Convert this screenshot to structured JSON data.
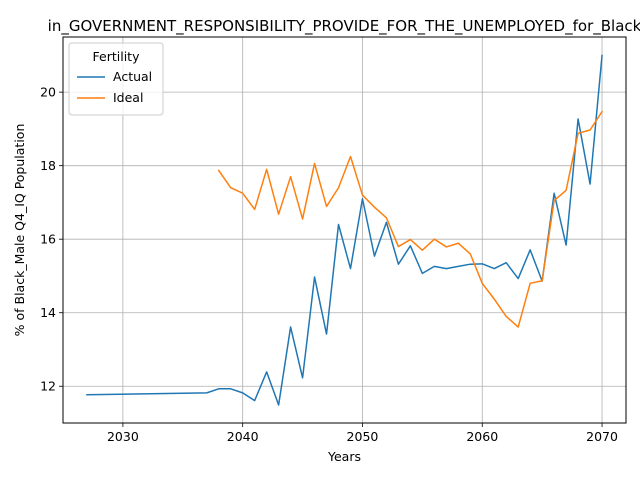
{
  "chart_data": {
    "type": "line",
    "title": "in_GOVERNMENT_RESPONSIBILITY_PROVIDE_FOR_THE_UNEMPLOYED_for_Black",
    "xlabel": "Years",
    "ylabel": "% of Black_Male Q4_IQ Population",
    "xlim": [
      2025,
      2072
    ],
    "ylim": [
      11.0,
      21.5
    ],
    "xticks": [
      2030,
      2040,
      2050,
      2060,
      2070
    ],
    "yticks": [
      12,
      14,
      16,
      18,
      20
    ],
    "grid": true,
    "legend": {
      "title": "Fertility",
      "placement": "upper-left"
    },
    "series": [
      {
        "name": "Actual",
        "color": "#1f77b4",
        "x": [
          2027,
          2037,
          2038,
          2039,
          2040,
          2041,
          2042,
          2043,
          2044,
          2045,
          2046,
          2047,
          2048,
          2049,
          2050,
          2051,
          2052,
          2053,
          2054,
          2055,
          2056,
          2057,
          2058,
          2059,
          2060,
          2061,
          2062,
          2063,
          2064,
          2065,
          2066,
          2067,
          2068,
          2069,
          2070
        ],
        "y": [
          11.77,
          11.82,
          11.93,
          11.93,
          11.82,
          11.61,
          12.39,
          11.49,
          13.61,
          12.23,
          14.97,
          13.42,
          16.4,
          15.2,
          17.1,
          15.54,
          16.46,
          15.32,
          15.82,
          15.07,
          15.26,
          15.2,
          15.26,
          15.32,
          15.33,
          15.2,
          15.36,
          14.93,
          15.71,
          14.86,
          17.25,
          15.84,
          19.27,
          17.5,
          21.0
        ]
      },
      {
        "name": "Ideal",
        "color": "#ff7f0e",
        "x": [
          2038,
          2039,
          2040,
          2041,
          2042,
          2043,
          2044,
          2045,
          2046,
          2047,
          2048,
          2049,
          2050,
          2051,
          2052,
          2053,
          2054,
          2055,
          2056,
          2057,
          2058,
          2059,
          2060,
          2061,
          2062,
          2063,
          2064,
          2065,
          2066,
          2067,
          2068,
          2069,
          2070
        ],
        "y": [
          17.87,
          17.4,
          17.25,
          16.81,
          17.9,
          16.68,
          17.7,
          16.55,
          18.06,
          16.89,
          17.4,
          18.25,
          17.2,
          16.87,
          16.58,
          15.8,
          15.99,
          15.7,
          16.0,
          15.79,
          15.89,
          15.6,
          14.8,
          14.37,
          13.9,
          13.61,
          14.8,
          14.87,
          17.05,
          17.33,
          18.88,
          18.97,
          19.47
        ]
      }
    ]
  }
}
